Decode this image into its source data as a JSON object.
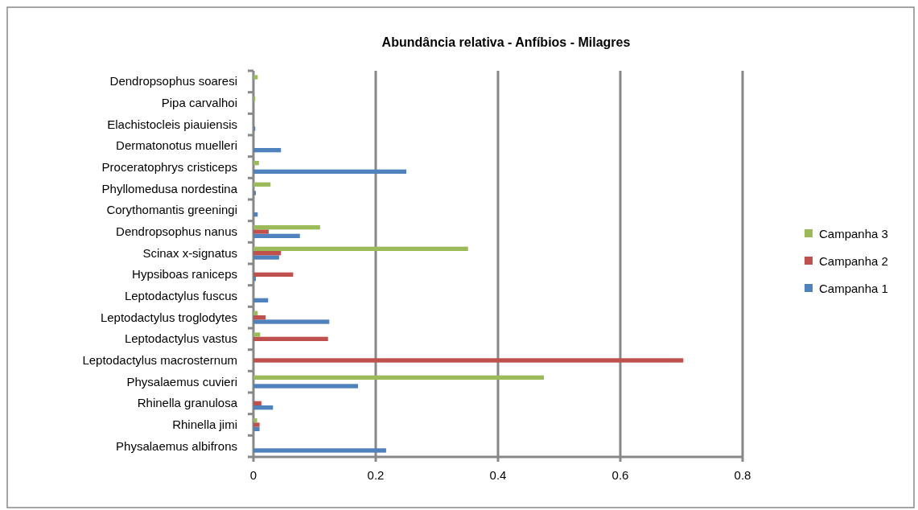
{
  "chart_data": {
    "type": "bar",
    "orientation": "horizontal",
    "title": "Abundância relativa - Anfíbios - Milagres",
    "categories": [
      "Dendropsophus soaresi",
      "Pipa carvalhoi",
      "Elachistocleis piauiensis",
      "Dermatonotus muelleri",
      "Proceratophrys cristiceps",
      "Phyllomedusa nordestina",
      "Corythomantis greeningi",
      "Dendropsophus nanus",
      "Scinax x-signatus",
      "Hypsiboas raniceps",
      "Leptodactylus fuscus",
      "Leptodactylus troglodytes",
      "Leptodactylus vastus",
      "Leptodactylus macrosternum",
      "Physalaemus cuvieri",
      "Rhinella granulosa",
      "Rhinella jimi",
      "Physalaemus albifrons"
    ],
    "series": [
      {
        "name": "Campanha 1",
        "color": "#4f81bd",
        "values": [
          0,
          0,
          0.003,
          0.045,
          0.25,
          0.004,
          0.007,
          0.076,
          0.042,
          0.004,
          0.024,
          0.124,
          null,
          0,
          0.171,
          0.032,
          0.01,
          0.217
        ]
      },
      {
        "name": "Campanha 2",
        "color": "#c0504d",
        "values": [
          0,
          0,
          0,
          null,
          0,
          0,
          0,
          0.025,
          0.045,
          0.065,
          null,
          0.02,
          0.122,
          0.703,
          0,
          0.013,
          0.01,
          0
        ]
      },
      {
        "name": "Campanha 3",
        "color": "#9bbb59",
        "values": [
          0.007,
          0.003,
          0,
          0,
          0.009,
          0.028,
          null,
          0.109,
          0.351,
          0,
          0,
          0.007,
          0.011,
          0,
          0.475,
          0,
          0.006,
          0
        ]
      }
    ],
    "xlim": [
      0,
      0.8
    ],
    "xticks": [
      0,
      {
        "value": 0.2,
        "label": "0.2"
      },
      {
        "value": 0.4,
        "label": "0.4"
      },
      {
        "value": 0.6,
        "label": "0.6"
      },
      {
        "value": 0.8,
        "label": "0.8"
      }
    ],
    "grid": "x",
    "legend": "right"
  }
}
